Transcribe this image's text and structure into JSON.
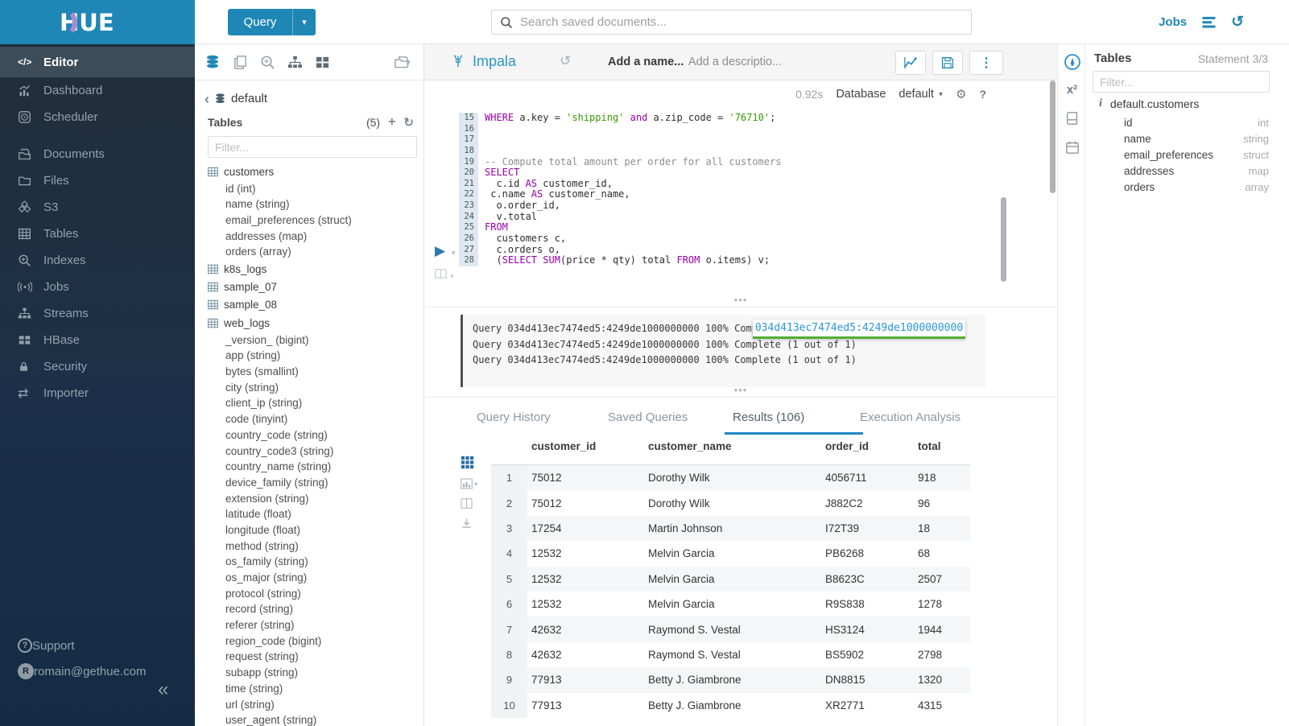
{
  "brand": {
    "logo": "HUE",
    "header_color": "#1f87b5",
    "accent": "#1f87b5"
  },
  "sidebar": {
    "items": [
      "Editor",
      "Dashboard",
      "Scheduler",
      "Documents",
      "Files",
      "S3",
      "Tables",
      "Indexes",
      "Jobs",
      "Streams",
      "HBase",
      "Security",
      "Importer"
    ],
    "active_item": "Editor",
    "support_label": "Support",
    "user_email": "romain@gethue.com",
    "avatar_letter": "R",
    "collapse_glyph": "«"
  },
  "topbar": {
    "query_label": "Query",
    "search_placeholder": "Search saved documents...",
    "jobs_label": "Jobs"
  },
  "db_panel": {
    "database": "default",
    "tables_label": "Tables",
    "tables_count": "(5)",
    "filter_placeholder": "Filter...",
    "tables": [
      {
        "name": "customers",
        "columns": [
          "id (int)",
          "name (string)",
          "email_preferences (struct)",
          "addresses (map)",
          "orders (array)"
        ]
      },
      {
        "name": "k8s_logs",
        "columns": []
      },
      {
        "name": "sample_07",
        "columns": []
      },
      {
        "name": "sample_08",
        "columns": []
      },
      {
        "name": "web_logs",
        "columns": [
          "_version_ (bigint)",
          "app (string)",
          "bytes (smallint)",
          "city (string)",
          "client_ip (string)",
          "code (tinyint)",
          "country_code (string)",
          "country_code3 (string)",
          "country_name (string)",
          "device_family (string)",
          "extension (string)",
          "latitude (float)",
          "longitude (float)",
          "method (string)",
          "os_family (string)",
          "os_major (string)",
          "protocol (string)",
          "record (string)",
          "referer (string)",
          "region_code (bigint)",
          "request (string)",
          "subapp (string)",
          "time (string)",
          "url (string)",
          "user_agent (string)"
        ]
      }
    ]
  },
  "editor": {
    "engine": "Impala",
    "name_placeholder": "Add a name...",
    "description_placeholder": "Add a descriptio...",
    "duration": "0.92s",
    "database_label": "Database",
    "database_value": "default",
    "lines": [
      {
        "n": "15",
        "t": [
          [
            "k",
            "WHERE"
          ],
          [
            "p",
            " a.key = "
          ],
          [
            "s",
            "'shipping'"
          ],
          [
            "p",
            " "
          ],
          [
            "k",
            "and"
          ],
          [
            "p",
            " a.zip_code = "
          ],
          [
            "s",
            "'76710'"
          ],
          [
            "p",
            ";"
          ]
        ]
      },
      {
        "n": "16",
        "t": []
      },
      {
        "n": "17",
        "t": []
      },
      {
        "n": "18",
        "t": []
      },
      {
        "n": "19",
        "t": [
          [
            "c",
            "-- Compute total amount per order for all customers"
          ]
        ]
      },
      {
        "n": "20",
        "t": [
          [
            "k",
            "SELECT"
          ]
        ]
      },
      {
        "n": "21",
        "t": [
          [
            "p",
            "  c.id "
          ],
          [
            "k",
            "AS"
          ],
          [
            "p",
            " customer_id,"
          ]
        ]
      },
      {
        "n": "22",
        "t": [
          [
            "p",
            " c.name "
          ],
          [
            "k",
            "AS"
          ],
          [
            "p",
            " customer_name,"
          ]
        ]
      },
      {
        "n": "23",
        "t": [
          [
            "p",
            "  o.order_id,"
          ]
        ]
      },
      {
        "n": "24",
        "t": [
          [
            "p",
            "  v.total"
          ]
        ]
      },
      {
        "n": "25",
        "t": [
          [
            "k",
            "FROM"
          ]
        ]
      },
      {
        "n": "26",
        "t": [
          [
            "p",
            "  customers c,"
          ]
        ]
      },
      {
        "n": "27",
        "t": [
          [
            "p",
            "  c.orders o,"
          ]
        ]
      },
      {
        "n": "28",
        "t": [
          [
            "p",
            "  ("
          ],
          [
            "k",
            "SELECT"
          ],
          [
            "p",
            " "
          ],
          [
            "k",
            "SUM"
          ],
          [
            "p",
            "(price * qty) total "
          ],
          [
            "k",
            "FROM"
          ],
          [
            "p",
            " o.items) v;"
          ]
        ]
      }
    ]
  },
  "logs": {
    "lines": [
      "Query 034d413ec7474ed5:4249de1000000000 100% Complete (1 out of 1)",
      "Query 034d413ec7474ed5:4249de1000000000 100% Complete (1 out of 1)",
      "Query 034d413ec7474ed5:4249de1000000000 100% Complete (1 out of 1)"
    ],
    "tooltip": "034d413ec7474ed5:4249de1000000000"
  },
  "tabs": {
    "items": [
      "Query History",
      "Saved Queries",
      "Results (106)",
      "Execution Analysis"
    ],
    "active_index": 2
  },
  "results": {
    "columns": [
      "customer_id",
      "customer_name",
      "order_id",
      "total"
    ],
    "rows": [
      [
        "1",
        "75012",
        "Dorothy Wilk",
        "4056711",
        "918"
      ],
      [
        "2",
        "75012",
        "Dorothy Wilk",
        "J882C2",
        "96"
      ],
      [
        "3",
        "17254",
        "Martin Johnson",
        "I72T39",
        "18"
      ],
      [
        "4",
        "12532",
        "Melvin Garcia",
        "PB6268",
        "68"
      ],
      [
        "5",
        "12532",
        "Melvin Garcia",
        "B8623C",
        "2507"
      ],
      [
        "6",
        "12532",
        "Melvin Garcia",
        "R9S838",
        "1278"
      ],
      [
        "7",
        "42632",
        "Raymond S. Vestal",
        "HS3124",
        "1944"
      ],
      [
        "8",
        "42632",
        "Raymond S. Vestal",
        "BS5902",
        "2798"
      ],
      [
        "9",
        "77913",
        "Betty J. Giambrone",
        "DN8815",
        "1320"
      ],
      [
        "10",
        "77913",
        "Betty J. Giambrone",
        "XR2771",
        "4315"
      ]
    ]
  },
  "right_panel": {
    "title": "Tables",
    "statement": "Statement 3/3",
    "filter_placeholder": "Filter...",
    "table_name": "default.customers",
    "columns": [
      [
        "id",
        "int"
      ],
      [
        "name",
        "string"
      ],
      [
        "email_preferences",
        "struct"
      ],
      [
        "addresses",
        "map"
      ],
      [
        "orders",
        "array"
      ]
    ]
  },
  "colors": {
    "keyword": "#9700a8",
    "string": "#379a00",
    "comment": "#8c8c8c",
    "tab_underline": "#1e88c3",
    "tooltip_green": "#52ae32",
    "link_blue": "#2a95c4"
  }
}
